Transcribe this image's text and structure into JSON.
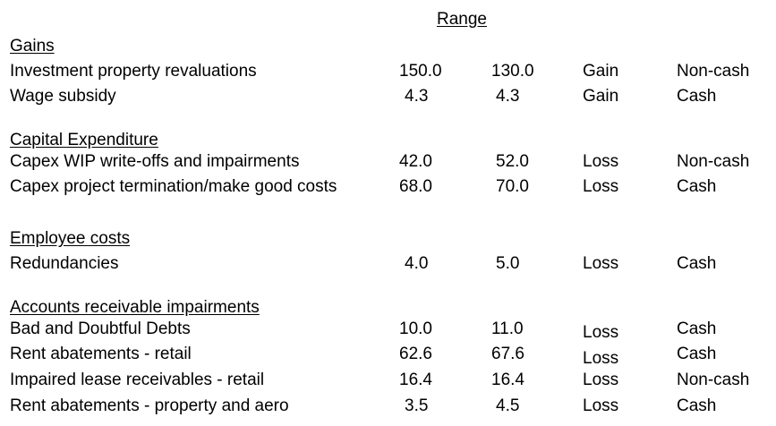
{
  "header": {
    "range_label": "Range"
  },
  "sections": [
    {
      "title": "Gains",
      "rows": [
        {
          "label": "Investment property revaluations",
          "low": "150.0",
          "high": "130.0",
          "type": "Gain",
          "cash": "Non-cash"
        },
        {
          "label": "Wage subsidy",
          "low": "4.3",
          "high": "4.3",
          "type": "Gain",
          "cash": "Cash"
        }
      ]
    },
    {
      "title": "Capital Expenditure",
      "rows": [
        {
          "label": "Capex WIP write-offs and impairments",
          "low": "42.0",
          "high": "52.0",
          "type": "Loss",
          "cash": "Non-cash"
        },
        {
          "label": "Capex project termination/make good costs",
          "low": "68.0",
          "high": "70.0",
          "type": "Loss",
          "cash": "Cash"
        }
      ]
    },
    {
      "title": "Employee costs",
      "rows": [
        {
          "label": "Redundancies",
          "low": "4.0",
          "high": "5.0",
          "type": "Loss",
          "cash": "Cash"
        }
      ]
    },
    {
      "title": "Accounts receivable impairments",
      "rows": [
        {
          "label": "Bad and Doubtful Debts",
          "low": "10.0",
          "high": "11.0",
          "type": "Loss",
          "cash": "Cash"
        },
        {
          "label": "Rent abatements - retail",
          "low": "62.6",
          "high": "67.6",
          "type": "Loss",
          "cash": "Cash"
        },
        {
          "label": "Impaired lease receivables - retail",
          "low": "16.4",
          "high": "16.4",
          "type": "Loss",
          "cash": "Non-cash"
        },
        {
          "label": "Rent abatements - property and aero",
          "low": "3.5",
          "high": "4.5",
          "type": "Loss",
          "cash": "Cash"
        }
      ]
    }
  ]
}
